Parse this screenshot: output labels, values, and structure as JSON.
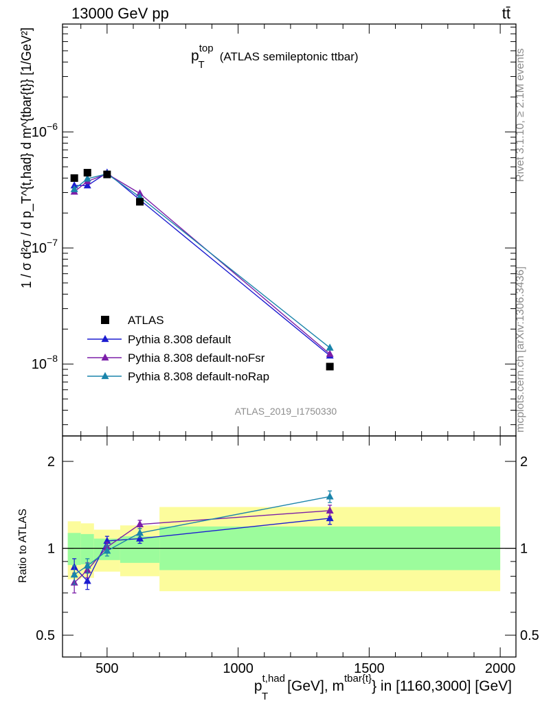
{
  "header": {
    "energy": "13000 GeV pp",
    "process": "tt̄"
  },
  "main_panel": {
    "title_main": "p",
    "title_sup": "top",
    "title_sub": "T",
    "title_rest": "(ATLAS semileptonic ttbar)",
    "ylabel": "1 / σ d²σ / d p_T^{t,had} d m^{tbar{t}} [1/GeV²]",
    "analysis_id": "ATLAS_2019_I1750330"
  },
  "ratio_panel": {
    "ylabel": "Ratio to ATLAS"
  },
  "x_axis": {
    "label_pre": "p",
    "label_sup1": "t,had",
    "label_sub1": "T",
    "label_mid": "[GeV], m",
    "label_sup2": "tbar{t}",
    "label_post": "} in [1160,3000] [GeV]"
  },
  "side_text": {
    "rivet": "Rivet 3.1.10, ≥ 2.1M events",
    "mcplots": "mcplots.cern.ch [arXiv:1306.3436]"
  },
  "legend": {
    "data": "ATLAS",
    "series": [
      "Pythia 8.308 default",
      "Pythia 8.308 default-noFsr",
      "Pythia 8.308 default-noRap"
    ]
  },
  "colors": {
    "data": "#000000",
    "default": "#1c1cd0",
    "noFsr": "#7b1ea8",
    "noRap": "#1a84ab",
    "band_inner": "#9cfc9c",
    "band_outer": "#fcfc9c"
  },
  "chart_data": {
    "type": "scatter",
    "xlim": [
      330,
      2060
    ],
    "xticks": [
      500,
      1000,
      1500,
      2000
    ],
    "main": {
      "yscale": "log",
      "ylim": [
        2.4e-09,
        8.5e-06
      ],
      "yticks": [
        {
          "v": 1e-06,
          "base": "10",
          "exp": "−6"
        },
        {
          "v": 1e-07,
          "base": "10",
          "exp": "−7"
        },
        {
          "v": 1e-08,
          "base": "10",
          "exp": "−8"
        }
      ],
      "data": {
        "name": "ATLAS",
        "x": [
          375,
          425,
          500,
          625,
          1350
        ],
        "y": [
          4e-07,
          4.45e-07,
          4.3e-07,
          2.5e-07,
          9.5e-09
        ]
      },
      "series": [
        {
          "name": "Pythia 8.308 default",
          "x": [
            375,
            425,
            500,
            625,
            1350
          ],
          "y": [
            3.45e-07,
            3.45e-07,
            4.45e-07,
            2.6e-07,
            1.18e-08
          ]
        },
        {
          "name": "Pythia 8.308 default-noFsr",
          "x": [
            375,
            425,
            500,
            625,
            1350
          ],
          "y": [
            3.05e-07,
            3.75e-07,
            4.35e-07,
            2.95e-07,
            1.22e-08
          ]
        },
        {
          "name": "Pythia 8.308 default-noRap",
          "x": [
            375,
            425,
            500,
            625,
            1350
          ],
          "y": [
            3.2e-07,
            3.95e-07,
            4.35e-07,
            2.75e-07,
            1.38e-08
          ]
        }
      ]
    },
    "ratio": {
      "yscale": "log",
      "ylim": [
        0.42,
        2.45
      ],
      "yticks": [
        0.5,
        1,
        2
      ],
      "band_bins": [
        {
          "x0": 350,
          "x1": 400,
          "inner": [
            0.875,
            1.13
          ],
          "outer": [
            0.78,
            1.24
          ]
        },
        {
          "x0": 400,
          "x1": 450,
          "inner": [
            0.88,
            1.12
          ],
          "outer": [
            0.79,
            1.22
          ]
        },
        {
          "x0": 450,
          "x1": 550,
          "inner": [
            0.91,
            1.08
          ],
          "outer": [
            0.83,
            1.16
          ]
        },
        {
          "x0": 550,
          "x1": 700,
          "inner": [
            0.89,
            1.1
          ],
          "outer": [
            0.8,
            1.2
          ]
        },
        {
          "x0": 700,
          "x1": 2000,
          "inner": [
            0.84,
            1.19
          ],
          "outer": [
            0.71,
            1.39
          ]
        }
      ],
      "series": [
        {
          "name": "Pythia 8.308 default",
          "x": [
            375,
            425,
            500,
            625,
            1350
          ],
          "y": [
            0.86,
            0.77,
            1.06,
            1.08,
            1.27
          ],
          "err": [
            0.06,
            0.05,
            0.04,
            0.04,
            0.06
          ]
        },
        {
          "name": "Pythia 8.308 default-noFsr",
          "x": [
            375,
            425,
            500,
            625,
            1350
          ],
          "y": [
            0.76,
            0.84,
            1.01,
            1.21,
            1.35
          ],
          "err": [
            0.06,
            0.05,
            0.04,
            0.04,
            0.06
          ]
        },
        {
          "name": "Pythia 8.308 default-noRap",
          "x": [
            375,
            425,
            500,
            625,
            1350
          ],
          "y": [
            0.81,
            0.87,
            0.98,
            1.13,
            1.51
          ],
          "err": [
            0.06,
            0.05,
            0.04,
            0.04,
            0.07
          ]
        }
      ]
    }
  }
}
